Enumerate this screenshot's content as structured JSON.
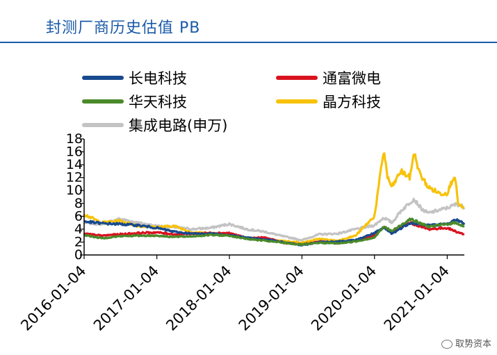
{
  "title": "封测厂商历史估值 PB",
  "watermark": "取势资本",
  "chart_data": {
    "type": "line",
    "ylim": [
      0,
      18
    ],
    "yticks": [
      0,
      2,
      4,
      6,
      8,
      10,
      12,
      14,
      16,
      18
    ],
    "x_start": "2016-01-04",
    "x_end": "2021-03-31",
    "xtick_labels": [
      "2016-01-04",
      "2017-01-04",
      "2018-01-04",
      "2019-01-04",
      "2020-01-04",
      "2021-01-04"
    ],
    "legend_position": "top",
    "series": [
      {
        "name": "长电科技",
        "color": "#174a8e",
        "points": [
          [
            "2016-01-04",
            5.2
          ],
          [
            "2016-04-01",
            4.9
          ],
          [
            "2016-07-01",
            4.8
          ],
          [
            "2016-10-01",
            4.6
          ],
          [
            "2017-01-04",
            4.2
          ],
          [
            "2017-04-01",
            3.6
          ],
          [
            "2017-07-01",
            3.3
          ],
          [
            "2017-10-01",
            3.3
          ],
          [
            "2018-01-04",
            3.1
          ],
          [
            "2018-04-01",
            2.7
          ],
          [
            "2018-07-01",
            2.4
          ],
          [
            "2018-10-01",
            2.0
          ],
          [
            "2019-01-04",
            1.5
          ],
          [
            "2019-04-01",
            2.0
          ],
          [
            "2019-07-01",
            2.1
          ],
          [
            "2019-10-01",
            2.3
          ],
          [
            "2020-01-04",
            3.4
          ],
          [
            "2020-02-20",
            4.2
          ],
          [
            "2020-04-01",
            3.3
          ],
          [
            "2020-07-01",
            5.0
          ],
          [
            "2020-10-01",
            4.6
          ],
          [
            "2021-01-04",
            4.8
          ],
          [
            "2021-02-20",
            5.5
          ],
          [
            "2021-03-31",
            4.8
          ]
        ]
      },
      {
        "name": "通富微电",
        "color": "#d9121f",
        "points": [
          [
            "2016-01-04",
            3.3
          ],
          [
            "2016-04-01",
            3.0
          ],
          [
            "2016-07-01",
            3.2
          ],
          [
            "2016-10-01",
            3.4
          ],
          [
            "2017-01-04",
            3.5
          ],
          [
            "2017-04-01",
            3.2
          ],
          [
            "2017-07-01",
            3.3
          ],
          [
            "2017-10-01",
            3.4
          ],
          [
            "2018-01-04",
            3.4
          ],
          [
            "2018-04-01",
            2.6
          ],
          [
            "2018-07-01",
            2.7
          ],
          [
            "2018-10-01",
            1.9
          ],
          [
            "2019-01-04",
            1.6
          ],
          [
            "2019-04-01",
            2.1
          ],
          [
            "2019-07-01",
            1.8
          ],
          [
            "2019-10-01",
            2.2
          ],
          [
            "2020-01-04",
            3.0
          ],
          [
            "2020-02-20",
            4.3
          ],
          [
            "2020-04-01",
            3.6
          ],
          [
            "2020-07-01",
            5.0
          ],
          [
            "2020-10-01",
            4.0
          ],
          [
            "2021-01-04",
            4.2
          ],
          [
            "2021-02-20",
            3.6
          ],
          [
            "2021-03-31",
            3.2
          ]
        ]
      },
      {
        "name": "华天科技",
        "color": "#4a8a2a",
        "points": [
          [
            "2016-01-04",
            3.1
          ],
          [
            "2016-04-01",
            2.6
          ],
          [
            "2016-07-01",
            2.9
          ],
          [
            "2016-10-01",
            3.0
          ],
          [
            "2017-01-04",
            3.0
          ],
          [
            "2017-04-01",
            2.8
          ],
          [
            "2017-07-01",
            2.9
          ],
          [
            "2017-10-01",
            3.1
          ],
          [
            "2018-01-04",
            3.0
          ],
          [
            "2018-04-01",
            2.5
          ],
          [
            "2018-07-01",
            2.2
          ],
          [
            "2018-10-01",
            1.9
          ],
          [
            "2019-01-04",
            1.6
          ],
          [
            "2019-04-01",
            1.9
          ],
          [
            "2019-07-01",
            1.8
          ],
          [
            "2019-10-01",
            2.1
          ],
          [
            "2020-01-04",
            2.7
          ],
          [
            "2020-02-20",
            4.4
          ],
          [
            "2020-04-01",
            3.7
          ],
          [
            "2020-07-01",
            5.6
          ],
          [
            "2020-10-01",
            4.4
          ],
          [
            "2021-01-04",
            4.8
          ],
          [
            "2021-02-20",
            5.0
          ],
          [
            "2021-03-31",
            4.4
          ]
        ]
      },
      {
        "name": "晶方科技",
        "color": "#f7c20a",
        "points": [
          [
            "2016-01-04",
            6.3
          ],
          [
            "2016-04-01",
            5.0
          ],
          [
            "2016-07-01",
            5.3
          ],
          [
            "2016-10-01",
            4.5
          ],
          [
            "2017-01-04",
            4.3
          ],
          [
            "2017-04-01",
            4.5
          ],
          [
            "2017-07-01",
            3.5
          ],
          [
            "2017-10-01",
            3.4
          ],
          [
            "2018-01-04",
            3.3
          ],
          [
            "2018-04-01",
            2.6
          ],
          [
            "2018-07-01",
            2.3
          ],
          [
            "2018-10-01",
            2.2
          ],
          [
            "2019-01-04",
            1.9
          ],
          [
            "2019-04-01",
            2.5
          ],
          [
            "2019-07-01",
            2.2
          ],
          [
            "2019-10-01",
            3.0
          ],
          [
            "2020-01-04",
            6.0
          ],
          [
            "2020-02-20",
            16.3
          ],
          [
            "2020-03-10",
            12.0
          ],
          [
            "2020-04-01",
            10.5
          ],
          [
            "2020-05-15",
            13.0
          ],
          [
            "2020-07-01",
            12.0
          ],
          [
            "2020-07-20",
            16.0
          ],
          [
            "2020-08-20",
            12.5
          ],
          [
            "2020-10-01",
            10.5
          ],
          [
            "2020-12-01",
            9.5
          ],
          [
            "2021-01-04",
            9.6
          ],
          [
            "2021-02-10",
            12.5
          ],
          [
            "2021-03-01",
            7.8
          ],
          [
            "2021-03-31",
            7.2
          ]
        ]
      },
      {
        "name": "集成电路(申万)",
        "color": "#c3c3c3",
        "points": [
          [
            "2016-01-04",
            5.0
          ],
          [
            "2016-04-01",
            4.8
          ],
          [
            "2016-07-01",
            5.6
          ],
          [
            "2016-10-01",
            5.0
          ],
          [
            "2017-01-04",
            4.5
          ],
          [
            "2017-04-01",
            4.3
          ],
          [
            "2017-07-01",
            4.0
          ],
          [
            "2017-10-01",
            4.2
          ],
          [
            "2018-01-04",
            4.8
          ],
          [
            "2018-04-01",
            4.0
          ],
          [
            "2018-07-01",
            3.6
          ],
          [
            "2018-10-01",
            2.9
          ],
          [
            "2019-01-04",
            2.3
          ],
          [
            "2019-04-01",
            3.2
          ],
          [
            "2019-07-01",
            3.3
          ],
          [
            "2019-10-01",
            4.0
          ],
          [
            "2020-01-04",
            4.6
          ],
          [
            "2020-02-20",
            5.8
          ],
          [
            "2020-04-01",
            5.0
          ],
          [
            "2020-05-15",
            6.8
          ],
          [
            "2020-07-20",
            8.7
          ],
          [
            "2020-09-01",
            7.0
          ],
          [
            "2020-10-01",
            6.5
          ],
          [
            "2021-01-04",
            7.3
          ],
          [
            "2021-02-20",
            7.9
          ],
          [
            "2021-03-31",
            7.4
          ]
        ]
      }
    ]
  }
}
